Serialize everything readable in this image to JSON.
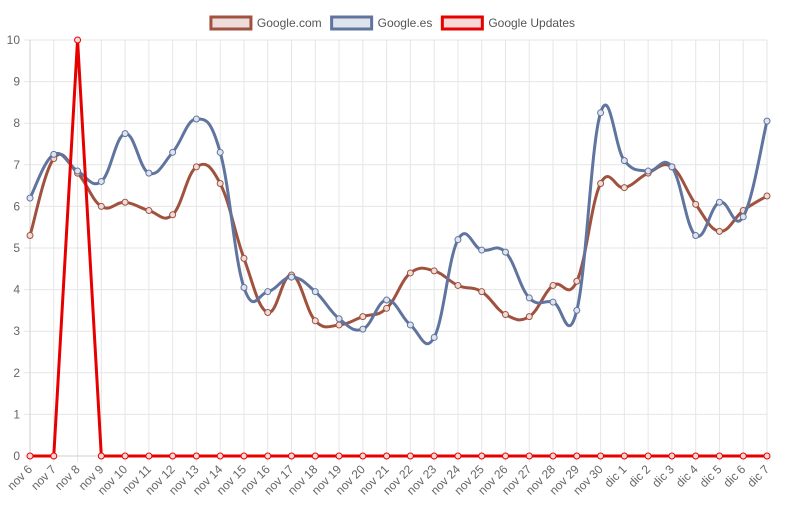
{
  "chart_data": {
    "type": "line",
    "categories": [
      "nov 6",
      "nov 7",
      "nov 8",
      "nov 9",
      "nov 10",
      "nov 11",
      "nov 12",
      "nov 13",
      "nov 14",
      "nov 15",
      "nov 16",
      "nov 17",
      "nov 18",
      "nov 19",
      "nov 20",
      "nov 21",
      "nov 22",
      "nov 23",
      "nov 24",
      "nov 25",
      "nov 26",
      "nov 27",
      "nov 28",
      "nov 29",
      "nov 30",
      "dic 1",
      "dic 2",
      "dic 3",
      "dic 4",
      "dic 5",
      "dic 6",
      "dic 7"
    ],
    "ylim": [
      0,
      10
    ],
    "yticks": [
      "0",
      "1",
      "2",
      "3",
      "4",
      "5",
      "6",
      "7",
      "8",
      "9",
      "10"
    ],
    "grid": true,
    "legend_position": "top",
    "series": [
      {
        "name": "Google.com",
        "color": "#a0523f",
        "fill": "#eddcda",
        "smooth": true,
        "values": [
          5.3,
          7.15,
          6.8,
          6.0,
          6.1,
          5.9,
          5.8,
          6.95,
          6.55,
          4.75,
          3.45,
          4.35,
          3.25,
          3.15,
          3.35,
          3.55,
          4.4,
          4.45,
          4.1,
          3.95,
          3.4,
          3.35,
          4.1,
          4.2,
          6.55,
          6.45,
          6.8,
          6.95,
          6.05,
          5.4,
          5.9,
          6.25
        ]
      },
      {
        "name": "Google.es",
        "color": "#6074a0",
        "fill": "#dfe3ec",
        "smooth": true,
        "values": [
          6.2,
          7.25,
          6.85,
          6.6,
          7.75,
          6.8,
          7.3,
          8.1,
          7.3,
          4.05,
          3.95,
          4.3,
          3.95,
          3.3,
          3.05,
          3.75,
          3.15,
          2.85,
          5.2,
          4.95,
          4.9,
          3.8,
          3.7,
          3.5,
          8.25,
          7.1,
          6.85,
          6.95,
          5.3,
          6.1,
          5.75,
          8.05
        ]
      },
      {
        "name": "Google Updates",
        "color": "#e60000",
        "fill": "#f8d7d7",
        "smooth": false,
        "values": [
          0,
          0,
          10,
          0,
          0,
          0,
          0,
          0,
          0,
          0,
          0,
          0,
          0,
          0,
          0,
          0,
          0,
          0,
          0,
          0,
          0,
          0,
          0,
          0,
          0,
          0,
          0,
          0,
          0,
          0,
          0,
          0
        ]
      }
    ]
  }
}
